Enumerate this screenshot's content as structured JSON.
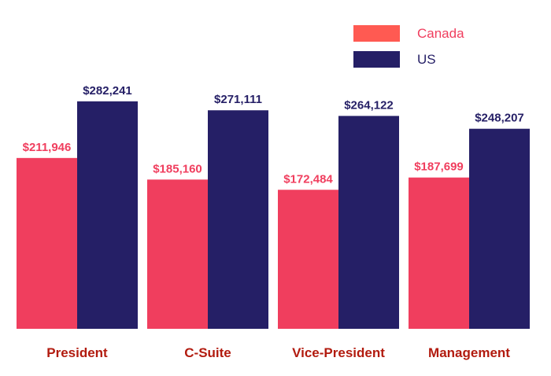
{
  "chart_data": {
    "type": "bar",
    "categories": [
      "President",
      "C-Suite",
      "Vice-President",
      "Management"
    ],
    "series": [
      {
        "name": "Canada",
        "values": [
          211946,
          185160,
          172484,
          187699
        ],
        "labels": [
          "$211,946",
          "$185,160",
          "$172,484",
          "$187,699"
        ]
      },
      {
        "name": "US",
        "values": [
          282241,
          271111,
          264122,
          248207
        ],
        "labels": [
          "$282,241",
          "$271,111",
          "$264,122",
          "$248,207"
        ]
      }
    ],
    "ylim": [
      0,
      325000
    ],
    "grid": false,
    "legend_position": "top-right",
    "colors": {
      "canada_bar": "#f03e5e",
      "canada_swatch": "#ff5a52",
      "canada_text": "#f03e5e",
      "us_bar": "#251f66",
      "us_text": "#251f66",
      "category_text": "#b21b0f"
    }
  }
}
